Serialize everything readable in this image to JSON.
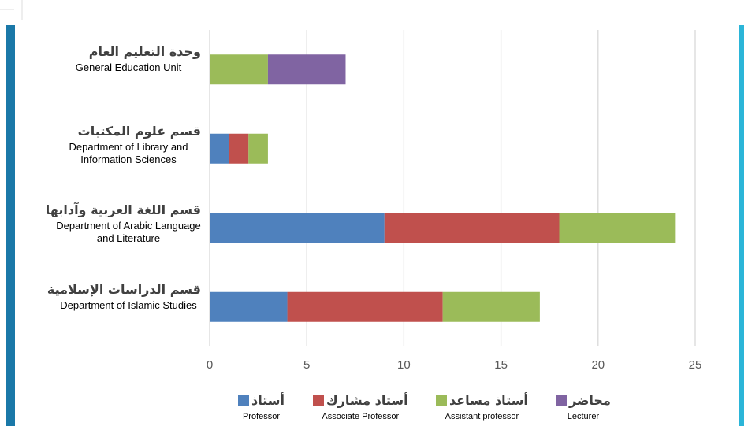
{
  "chart_data": {
    "type": "stacked-bar-horizontal",
    "categories": [
      {
        "ar": "وحدة التعليم العام",
        "en": "General Education Unit"
      },
      {
        "ar": "قسم علوم المكتبات",
        "en": "Department of Library and Information Sciences"
      },
      {
        "ar": "قسم اللغة العربية وآدابها",
        "en": "Department of Arabic Language and Literature"
      },
      {
        "ar": "قسم الدراسات الإسلامية",
        "en": "Department of Islamic Studies"
      }
    ],
    "series": [
      {
        "name": "أستاذ",
        "subtitle": "Professor",
        "color": "#4f81bd",
        "values": [
          null,
          1,
          9,
          4
        ]
      },
      {
        "name": "أستاذ مشارك",
        "subtitle": "Associate Professor",
        "color": "#c0504d",
        "values": [
          null,
          1,
          9,
          8
        ]
      },
      {
        "name": "أستاذ مساعد",
        "subtitle": "Assistant professor",
        "color": "#9bbb59",
        "values": [
          3,
          1,
          6,
          5
        ]
      },
      {
        "name": "محاضر",
        "subtitle": "Lecturer",
        "color": "#8064a2",
        "values": [
          4,
          null,
          null,
          null
        ]
      }
    ],
    "xlim": [
      0,
      25
    ],
    "xticks": [
      0,
      5,
      10,
      15,
      20,
      25
    ],
    "grid": true
  }
}
